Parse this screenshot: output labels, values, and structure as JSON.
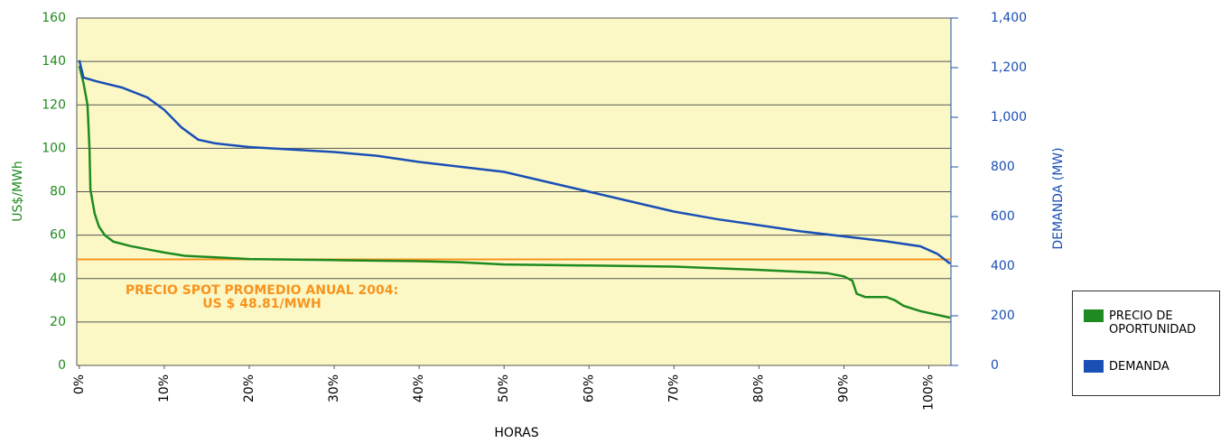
{
  "chart_data": {
    "type": "line",
    "x_label": "HORAS",
    "y_label": "US$/MWh",
    "y2_label": "DEMANDA (MW)",
    "xlim": [
      -0.3,
      102.6
    ],
    "xticks": [
      {
        "value": 0,
        "label": "0%"
      },
      {
        "value": 10,
        "label": "10%"
      },
      {
        "value": 20,
        "label": "20%"
      },
      {
        "value": 30,
        "label": "30%"
      },
      {
        "value": 40,
        "label": "40%"
      },
      {
        "value": 50,
        "label": "50%"
      },
      {
        "value": 60,
        "label": "60%"
      },
      {
        "value": 70,
        "label": "70%"
      },
      {
        "value": 80,
        "label": "80%"
      },
      {
        "value": 90,
        "label": "90%"
      },
      {
        "value": 100,
        "label": "100%"
      }
    ],
    "ylim": [
      0,
      160
    ],
    "yticks": [
      0,
      20,
      40,
      60,
      80,
      100,
      120,
      140,
      160
    ],
    "y2lim": [
      0,
      1400
    ],
    "y2ticks": [
      0,
      200,
      400,
      600,
      800,
      {
        "value": 1000,
        "label": "1,000"
      },
      {
        "value": 1200,
        "label": "1,200"
      },
      {
        "value": 1400,
        "label": "1,400"
      }
    ],
    "grid": true,
    "series": [
      {
        "name": "PRECIO DE OPORTUNIDAD",
        "color": "#1f8a1f",
        "x": [
          0,
          0.5,
          0.96,
          1.2,
          1.3,
          1.8,
          2.3,
          3,
          4,
          6,
          8,
          10,
          12.4,
          15,
          20,
          30,
          40,
          45,
          50,
          60,
          70,
          80,
          88,
          90,
          91,
          91.5,
          92.5,
          95,
          96,
          97,
          99,
          102.5
        ],
        "values": [
          138,
          130,
          120,
          100,
          81,
          70,
          64,
          60,
          57,
          55,
          53.5,
          52,
          50.5,
          50,
          49,
          48.5,
          48,
          47.5,
          46.5,
          46,
          45.5,
          44,
          42.5,
          41,
          39,
          33,
          31.5,
          31.5,
          30,
          27.5,
          25,
          22
        ]
      },
      {
        "name": "DEMANDA",
        "color": "#1a4fb5",
        "axis": "y2",
        "x": [
          0,
          0.5,
          2,
          5,
          8,
          10,
          12,
          14,
          16,
          20,
          30,
          35,
          40,
          45,
          50,
          55,
          60,
          65,
          70,
          75,
          80,
          85,
          90,
          95,
          99,
          101,
          102.5
        ],
        "values": [
          1230,
          1160,
          1145,
          1120,
          1080,
          1030,
          960,
          910,
          895,
          880,
          860,
          845,
          820,
          800,
          780,
          740,
          700,
          660,
          620,
          590,
          565,
          540,
          520,
          500,
          480,
          450,
          410
        ]
      }
    ],
    "reference_line": {
      "value": 48.81,
      "color": "#f7941d"
    },
    "annotations": [
      "PRECIO SPOT PROMEDIO ANUAL 2004:",
      "US $ 48.81/MWH"
    ],
    "legend_position": "right"
  }
}
